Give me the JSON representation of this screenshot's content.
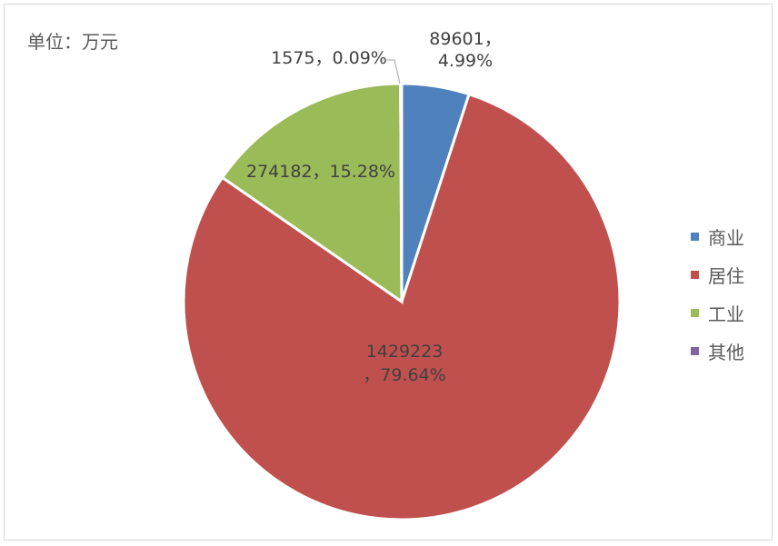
{
  "unit_label": "单位：万元",
  "colors": {
    "商业": "#4F81BD",
    "居住": "#C0504D",
    "工业": "#9BBB59",
    "其他": "#8064A2"
  },
  "chart_data": {
    "type": "pie",
    "title": "",
    "categories": [
      "商业",
      "居住",
      "工业",
      "其他"
    ],
    "values": [
      89601,
      1429223,
      274182,
      1575
    ],
    "percentages": [
      "4.99%",
      "79.64%",
      "15.28%",
      "0.09%"
    ],
    "data_labels": [
      [
        "89601，",
        "4.99%"
      ],
      [
        "1429223",
        "，79.64%"
      ],
      [
        "274182，15.28%"
      ],
      [
        "1575，0.09%"
      ]
    ],
    "legend_position": "right",
    "start_angle": "12 o'clock",
    "direction": "clockwise"
  }
}
